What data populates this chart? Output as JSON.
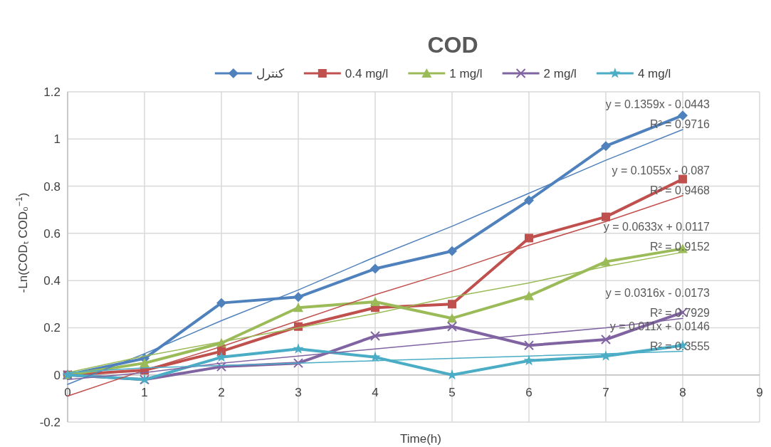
{
  "chart_data": {
    "type": "line",
    "title": "COD",
    "xlabel": "Time(h)",
    "ylabel": "-Ln(CODₜ COD₀$^{−1}$)",
    "x": [
      0,
      1,
      2,
      3,
      4,
      5,
      6,
      7,
      8
    ],
    "xlim": [
      0,
      9
    ],
    "xticks": [
      0,
      1,
      2,
      3,
      4,
      5,
      6,
      7,
      8,
      9
    ],
    "ylim": [
      -0.2,
      1.2
    ],
    "yticks": [
      -0.2,
      0,
      0.2,
      0.4,
      0.6,
      0.8,
      1,
      1.2
    ],
    "grid": true,
    "legend": "top",
    "series": [
      {
        "name": "كنترل",
        "color": "#4f81bd",
        "marker": "diamond",
        "values": [
          0,
          0.07,
          0.305,
          0.33,
          0.45,
          0.525,
          0.74,
          0.97,
          1.1
        ]
      },
      {
        "name": "0.4 mg/l",
        "color": "#c0504d",
        "marker": "square",
        "values": [
          0,
          0.02,
          0.1,
          0.205,
          0.285,
          0.3,
          0.58,
          0.67,
          0.83
        ]
      },
      {
        "name": "1  mg/l",
        "color": "#9bbb59",
        "marker": "triangle",
        "values": [
          0,
          0.05,
          0.135,
          0.285,
          0.31,
          0.24,
          0.335,
          0.48,
          0.535
        ]
      },
      {
        "name": "2 mg/l",
        "color": "#8064a2",
        "marker": "cross",
        "values": [
          0,
          -0.02,
          0.035,
          0.05,
          0.165,
          0.205,
          0.125,
          0.15,
          0.265
        ]
      },
      {
        "name": "4 mg/l",
        "color": "#4bacc6",
        "marker": "star",
        "values": [
          0,
          -0.02,
          0.075,
          0.11,
          0.075,
          0,
          0.06,
          0.08,
          0.125
        ]
      },
      {
        "type": "line",
        "color": "#4f81bd",
        "marker": "none",
        "values": [
          -0.04,
          0.09,
          0.23,
          0.36,
          0.5,
          0.63,
          0.77,
          0.91,
          1.04
        ]
      },
      {
        "type": "line",
        "color": "#c0504d",
        "marker": "none",
        "values": [
          -0.09,
          0.02,
          0.12,
          0.23,
          0.34,
          0.44,
          0.55,
          0.65,
          0.76
        ]
      },
      {
        "type": "line",
        "color": "#9bbb59",
        "marker": "none",
        "values": [
          0.01,
          0.08,
          0.14,
          0.2,
          0.26,
          0.33,
          0.39,
          0.46,
          0.52
        ]
      },
      {
        "type": "line",
        "color": "#8064a2",
        "marker": "none",
        "values": [
          -0.02,
          0.01,
          0.05,
          0.08,
          0.11,
          0.14,
          0.17,
          0.2,
          0.24
        ]
      },
      {
        "type": "line",
        "color": "#4bacc6",
        "marker": "none",
        "values": [
          0.01,
          0.03,
          0.04,
          0.05,
          0.06,
          0.07,
          0.08,
          0.09,
          0.1
        ]
      }
    ],
    "annotations": [
      "y = 0.1359x - 0.0443",
      "R² = 0.9716",
      "y = 0.1055x - 0.087",
      "R² = 0.9468",
      "y = 0.0633x + 0.0117",
      "R² = 0.9152",
      "y = 0.0316x - 0.0173",
      "R² = 0.7929",
      "y = 0.011x + 0.0146",
      "R² = 0.3555"
    ]
  }
}
